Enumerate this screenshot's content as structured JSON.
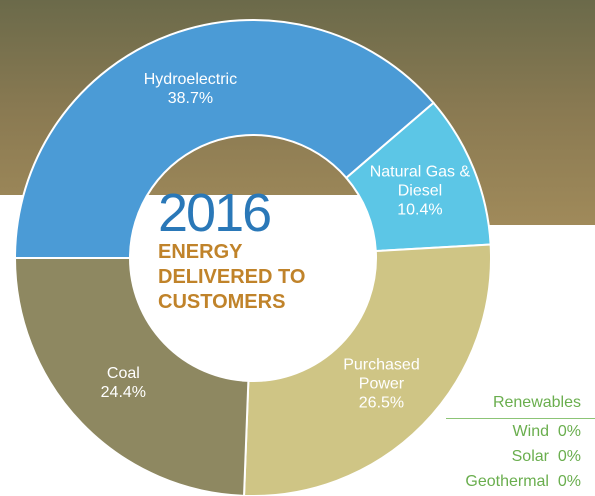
{
  "chart_data": {
    "type": "donut",
    "title": "2016",
    "subtitle": [
      "ENERGY",
      "DELIVERED TO",
      "CUSTOMERS"
    ],
    "categories": [
      "Hydroelectric",
      "Natural Gas & Diesel",
      "Purchased Power",
      "Coal"
    ],
    "values": [
      38.7,
      10.4,
      26.5,
      24.4
    ],
    "value_labels": [
      "38.7%",
      "10.4%",
      "26.5%",
      "24.4%"
    ],
    "colors": [
      "#4b9bd6",
      "#5cc6e6",
      "#cfc585",
      "#8e8861"
    ],
    "renewables": {
      "title": "Renewables",
      "items": [
        {
          "name": "Wind",
          "value": 0,
          "value_label": "0%"
        },
        {
          "name": "Solar",
          "value": 0,
          "value_label": "0%"
        },
        {
          "name": "Geothermal",
          "value": 0,
          "value_label": "0%"
        }
      ]
    }
  }
}
